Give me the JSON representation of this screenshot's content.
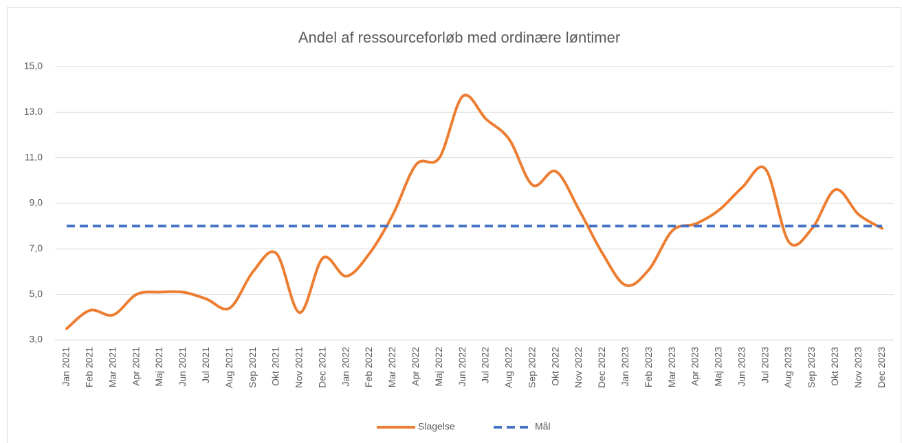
{
  "chart_data": {
    "type": "line",
    "title": "Andel af ressourceforløb med ordinære løntimer",
    "categories": [
      "Jan 2021",
      "Feb 2021",
      "Mar 2021",
      "Apr 2021",
      "Maj 2021",
      "Jun 2021",
      "Jul 2021",
      "Aug 2021",
      "Sep 2021",
      "Okt 2021",
      "Nov 2021",
      "Dec 2021",
      "Jan 2022",
      "Feb 2022",
      "Mar 2022",
      "Apr 2022",
      "Maj 2022",
      "Jun 2022",
      "Jul 2022",
      "Aug 2022",
      "Sep 2022",
      "Okt 2022",
      "Nov 2022",
      "Dec 2022",
      "Jan 2023",
      "Feb 2023",
      "Mar 2023",
      "Apr 2023",
      "Maj 2023",
      "Jun 2023",
      "Jul 2023",
      "Aug 2023",
      "Sep 2023",
      "Okt 2023",
      "Nov 2023",
      "Dec 2023"
    ],
    "series": [
      {
        "name": "Slagelse",
        "color": "#ed7d31",
        "smooth": true,
        "values": [
          3.5,
          4.3,
          4.1,
          5.0,
          5.1,
          5.1,
          4.8,
          4.4,
          6.0,
          6.8,
          4.2,
          6.6,
          5.8,
          6.8,
          8.5,
          10.7,
          11.0,
          13.7,
          12.7,
          11.8,
          9.8,
          10.4,
          8.7,
          6.8,
          5.4,
          6.1,
          7.8,
          8.1,
          8.7,
          9.7,
          10.5,
          7.3,
          7.9,
          9.6,
          8.5,
          7.9
        ]
      },
      {
        "name": "Mål",
        "color": "#4472c4",
        "dashed": true,
        "values": [
          8,
          8,
          8,
          8,
          8,
          8,
          8,
          8,
          8,
          8,
          8,
          8,
          8,
          8,
          8,
          8,
          8,
          8,
          8,
          8,
          8,
          8,
          8,
          8,
          8,
          8,
          8,
          8,
          8,
          8,
          8,
          8,
          8,
          8,
          8,
          8
        ]
      }
    ],
    "ylim": [
      3,
      15
    ],
    "yticks": [
      {
        "value": 3,
        "label": "3,0"
      },
      {
        "value": 5,
        "label": "5,0"
      },
      {
        "value": 7,
        "label": "7,0"
      },
      {
        "value": 9,
        "label": "9,0"
      },
      {
        "value": 11,
        "label": "11,0"
      },
      {
        "value": 13,
        "label": "13,0"
      },
      {
        "value": 15,
        "label": "15,0"
      }
    ],
    "grid": true
  }
}
